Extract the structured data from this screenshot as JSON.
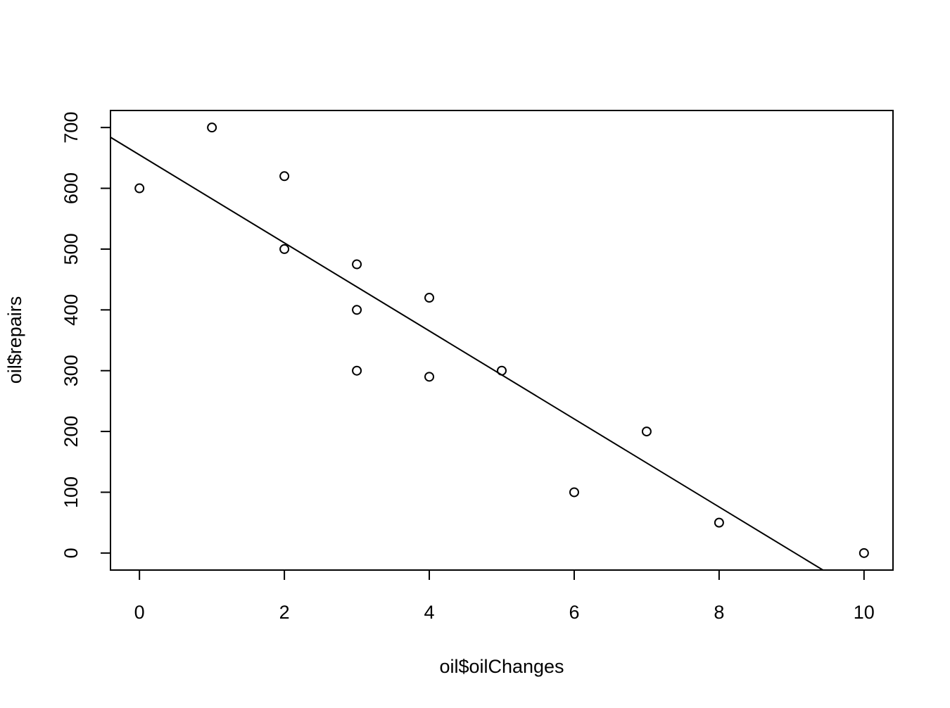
{
  "chart_data": {
    "type": "scatter",
    "title": "",
    "xlabel": "oil$oilChanges",
    "ylabel": "oil$repairs",
    "xlim": [
      -0.4,
      10.4
    ],
    "ylim": [
      -28,
      728
    ],
    "x_ticks": [
      0,
      2,
      4,
      6,
      8,
      10
    ],
    "y_ticks": [
      0,
      100,
      200,
      300,
      400,
      500,
      600,
      700
    ],
    "grid": false,
    "legend": "none",
    "points": [
      {
        "x": 0,
        "y": 600
      },
      {
        "x": 1,
        "y": 700
      },
      {
        "x": 2,
        "y": 620
      },
      {
        "x": 2,
        "y": 500
      },
      {
        "x": 3,
        "y": 475
      },
      {
        "x": 3,
        "y": 400
      },
      {
        "x": 3,
        "y": 300
      },
      {
        "x": 4,
        "y": 420
      },
      {
        "x": 4,
        "y": 290
      },
      {
        "x": 5,
        "y": 300
      },
      {
        "x": 6,
        "y": 100
      },
      {
        "x": 7,
        "y": 200
      },
      {
        "x": 8,
        "y": 50
      },
      {
        "x": 10,
        "y": 0
      }
    ],
    "regression_line": {
      "intercept": 655,
      "slope": -72.4
    },
    "colors": {
      "points": "#000000",
      "line": "#000000",
      "frame": "#000000",
      "background": "#ffffff"
    }
  }
}
